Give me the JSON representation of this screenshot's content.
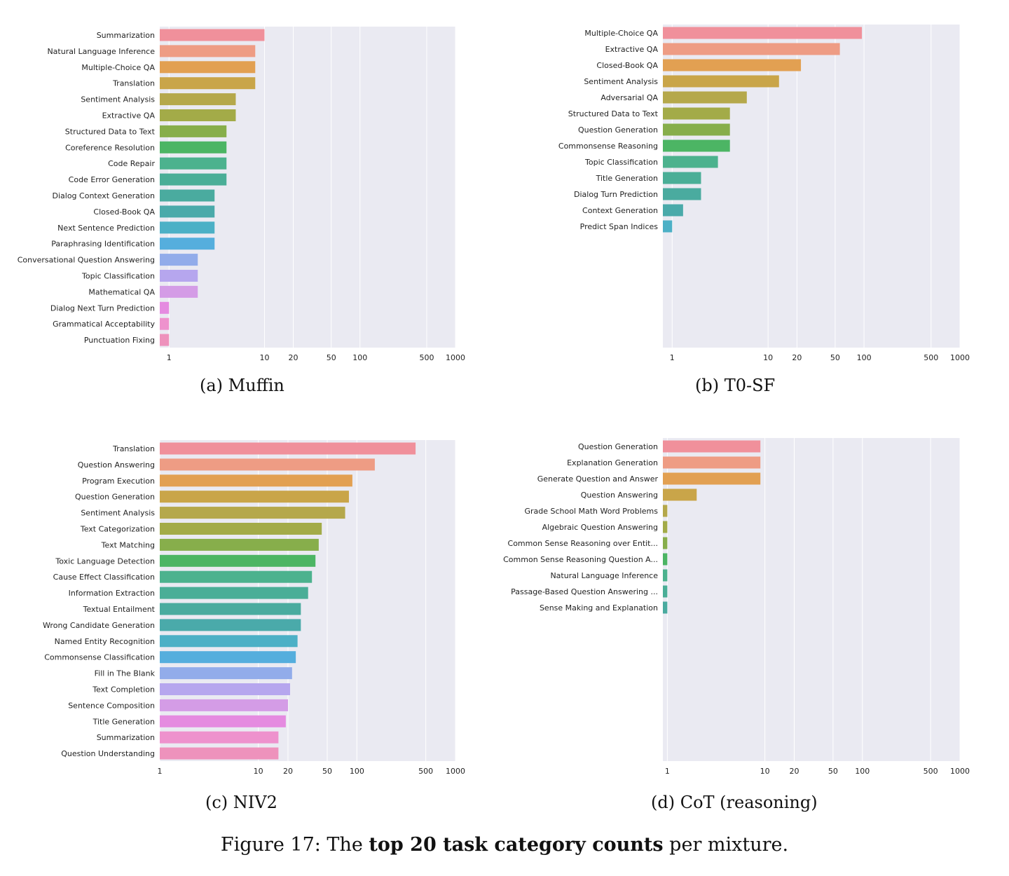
{
  "figure": {
    "caption_prefix": "Figure 17: The ",
    "caption_bold": "top 20 task category counts",
    "caption_suffix": " per mixture."
  },
  "colors": {
    "plot_background": "#eaeaf2",
    "grid": "#ffffff",
    "palette": [
      "#f0909b",
      "#ee9c84",
      "#e2a052",
      "#c9a549",
      "#b5a84b",
      "#a3ab48",
      "#87ae4b",
      "#4cb564",
      "#4cb28e",
      "#4aae97",
      "#4aab9f",
      "#4aaaaa",
      "#4cb0c6",
      "#55aedd",
      "#92acea",
      "#b6a6ee",
      "#d49ce6",
      "#e58be0",
      "#ee92cd",
      "#ee92bc"
    ]
  },
  "chart_data": [
    {
      "type": "bar",
      "orientation": "horizontal",
      "caption": "(a) Muffin",
      "xscale": "log",
      "xlim": [
        0.8,
        1000
      ],
      "xticks": [
        1,
        10,
        20,
        50,
        100,
        500,
        1000
      ],
      "categories": [
        "Summarization",
        "Natural Language Inference",
        "Multiple-Choice QA",
        "Translation",
        "Sentiment Analysis",
        "Extractive QA",
        "Structured Data to Text",
        "Coreference Resolution",
        "Code Repair",
        "Code Error Generation",
        "Dialog Context Generation",
        "Closed-Book QA",
        "Next Sentence Prediction",
        "Paraphrasing Identification",
        "Conversational Question Answering",
        "Topic Classification",
        "Mathematical QA",
        "Dialog Next Turn Prediction",
        "Grammatical Acceptability",
        "Punctuation Fixing"
      ],
      "values": [
        10,
        8,
        8,
        8,
        5,
        5,
        4,
        4,
        4,
        4,
        3,
        3,
        3,
        3,
        2,
        2,
        2,
        1,
        1,
        1
      ]
    },
    {
      "type": "bar",
      "orientation": "horizontal",
      "caption": "(b) T0-SF",
      "xscale": "log",
      "xlim": [
        0.8,
        1000
      ],
      "xticks": [
        1,
        10,
        20,
        50,
        100,
        500,
        1000
      ],
      "categories": [
        "Multiple-Choice QA",
        "Extractive QA",
        "Closed-Book QA",
        "Sentiment Analysis",
        "Adversarial QA",
        "Structured Data to Text",
        "Question Generation",
        "Commonsense Reasoning",
        "Topic Classification",
        "Title Generation",
        "Dialog Turn Prediction",
        "Context Generation",
        "Predict Span Indices"
      ],
      "values": [
        95,
        56,
        22,
        13,
        6,
        4,
        4,
        4,
        3,
        2,
        2,
        1.3,
        1
      ]
    },
    {
      "type": "bar",
      "orientation": "horizontal",
      "caption": "(c) NIV2",
      "xscale": "log",
      "xlim": [
        1,
        1000
      ],
      "xticks": [
        1,
        10,
        20,
        50,
        100,
        500,
        1000
      ],
      "categories": [
        "Translation",
        "Question Answering",
        "Program Execution",
        "Question Generation",
        "Sentiment Analysis",
        "Text Categorization",
        "Text Matching",
        "Toxic Language Detection",
        "Cause Effect Classification",
        "Information Extraction",
        "Textual Entailment",
        "Wrong Candidate Generation",
        "Named Entity Recognition",
        "Commonsense Classification",
        "Fill in The Blank",
        "Text Completion",
        "Sentence Composition",
        "Title Generation",
        "Summarization",
        "Question Understanding"
      ],
      "values": [
        394,
        152,
        90,
        83,
        76,
        44,
        41,
        38,
        35,
        32,
        27,
        27,
        25,
        24,
        22,
        21,
        20,
        19,
        16,
        16
      ]
    },
    {
      "type": "bar",
      "orientation": "horizontal",
      "caption": "(d) CoT (reasoning)",
      "xscale": "log",
      "xlim": [
        0.9,
        1000
      ],
      "xticks": [
        1,
        10,
        20,
        50,
        100,
        500,
        1000
      ],
      "categories": [
        "Question Generation",
        "Explanation Generation",
        "Generate Question and Answer",
        "Question Answering",
        "Grade School Math Word Problems",
        "Algebraic Question Answering",
        "Common Sense Reasoning over Entit...",
        "Common Sense Reasoning Question A...",
        "Natural Language Inference",
        "Passage-Based Question Answering ...",
        "Sense Making and Explanation"
      ],
      "values": [
        9,
        9,
        9,
        2,
        1,
        1,
        1,
        1,
        1,
        1,
        1
      ]
    }
  ]
}
